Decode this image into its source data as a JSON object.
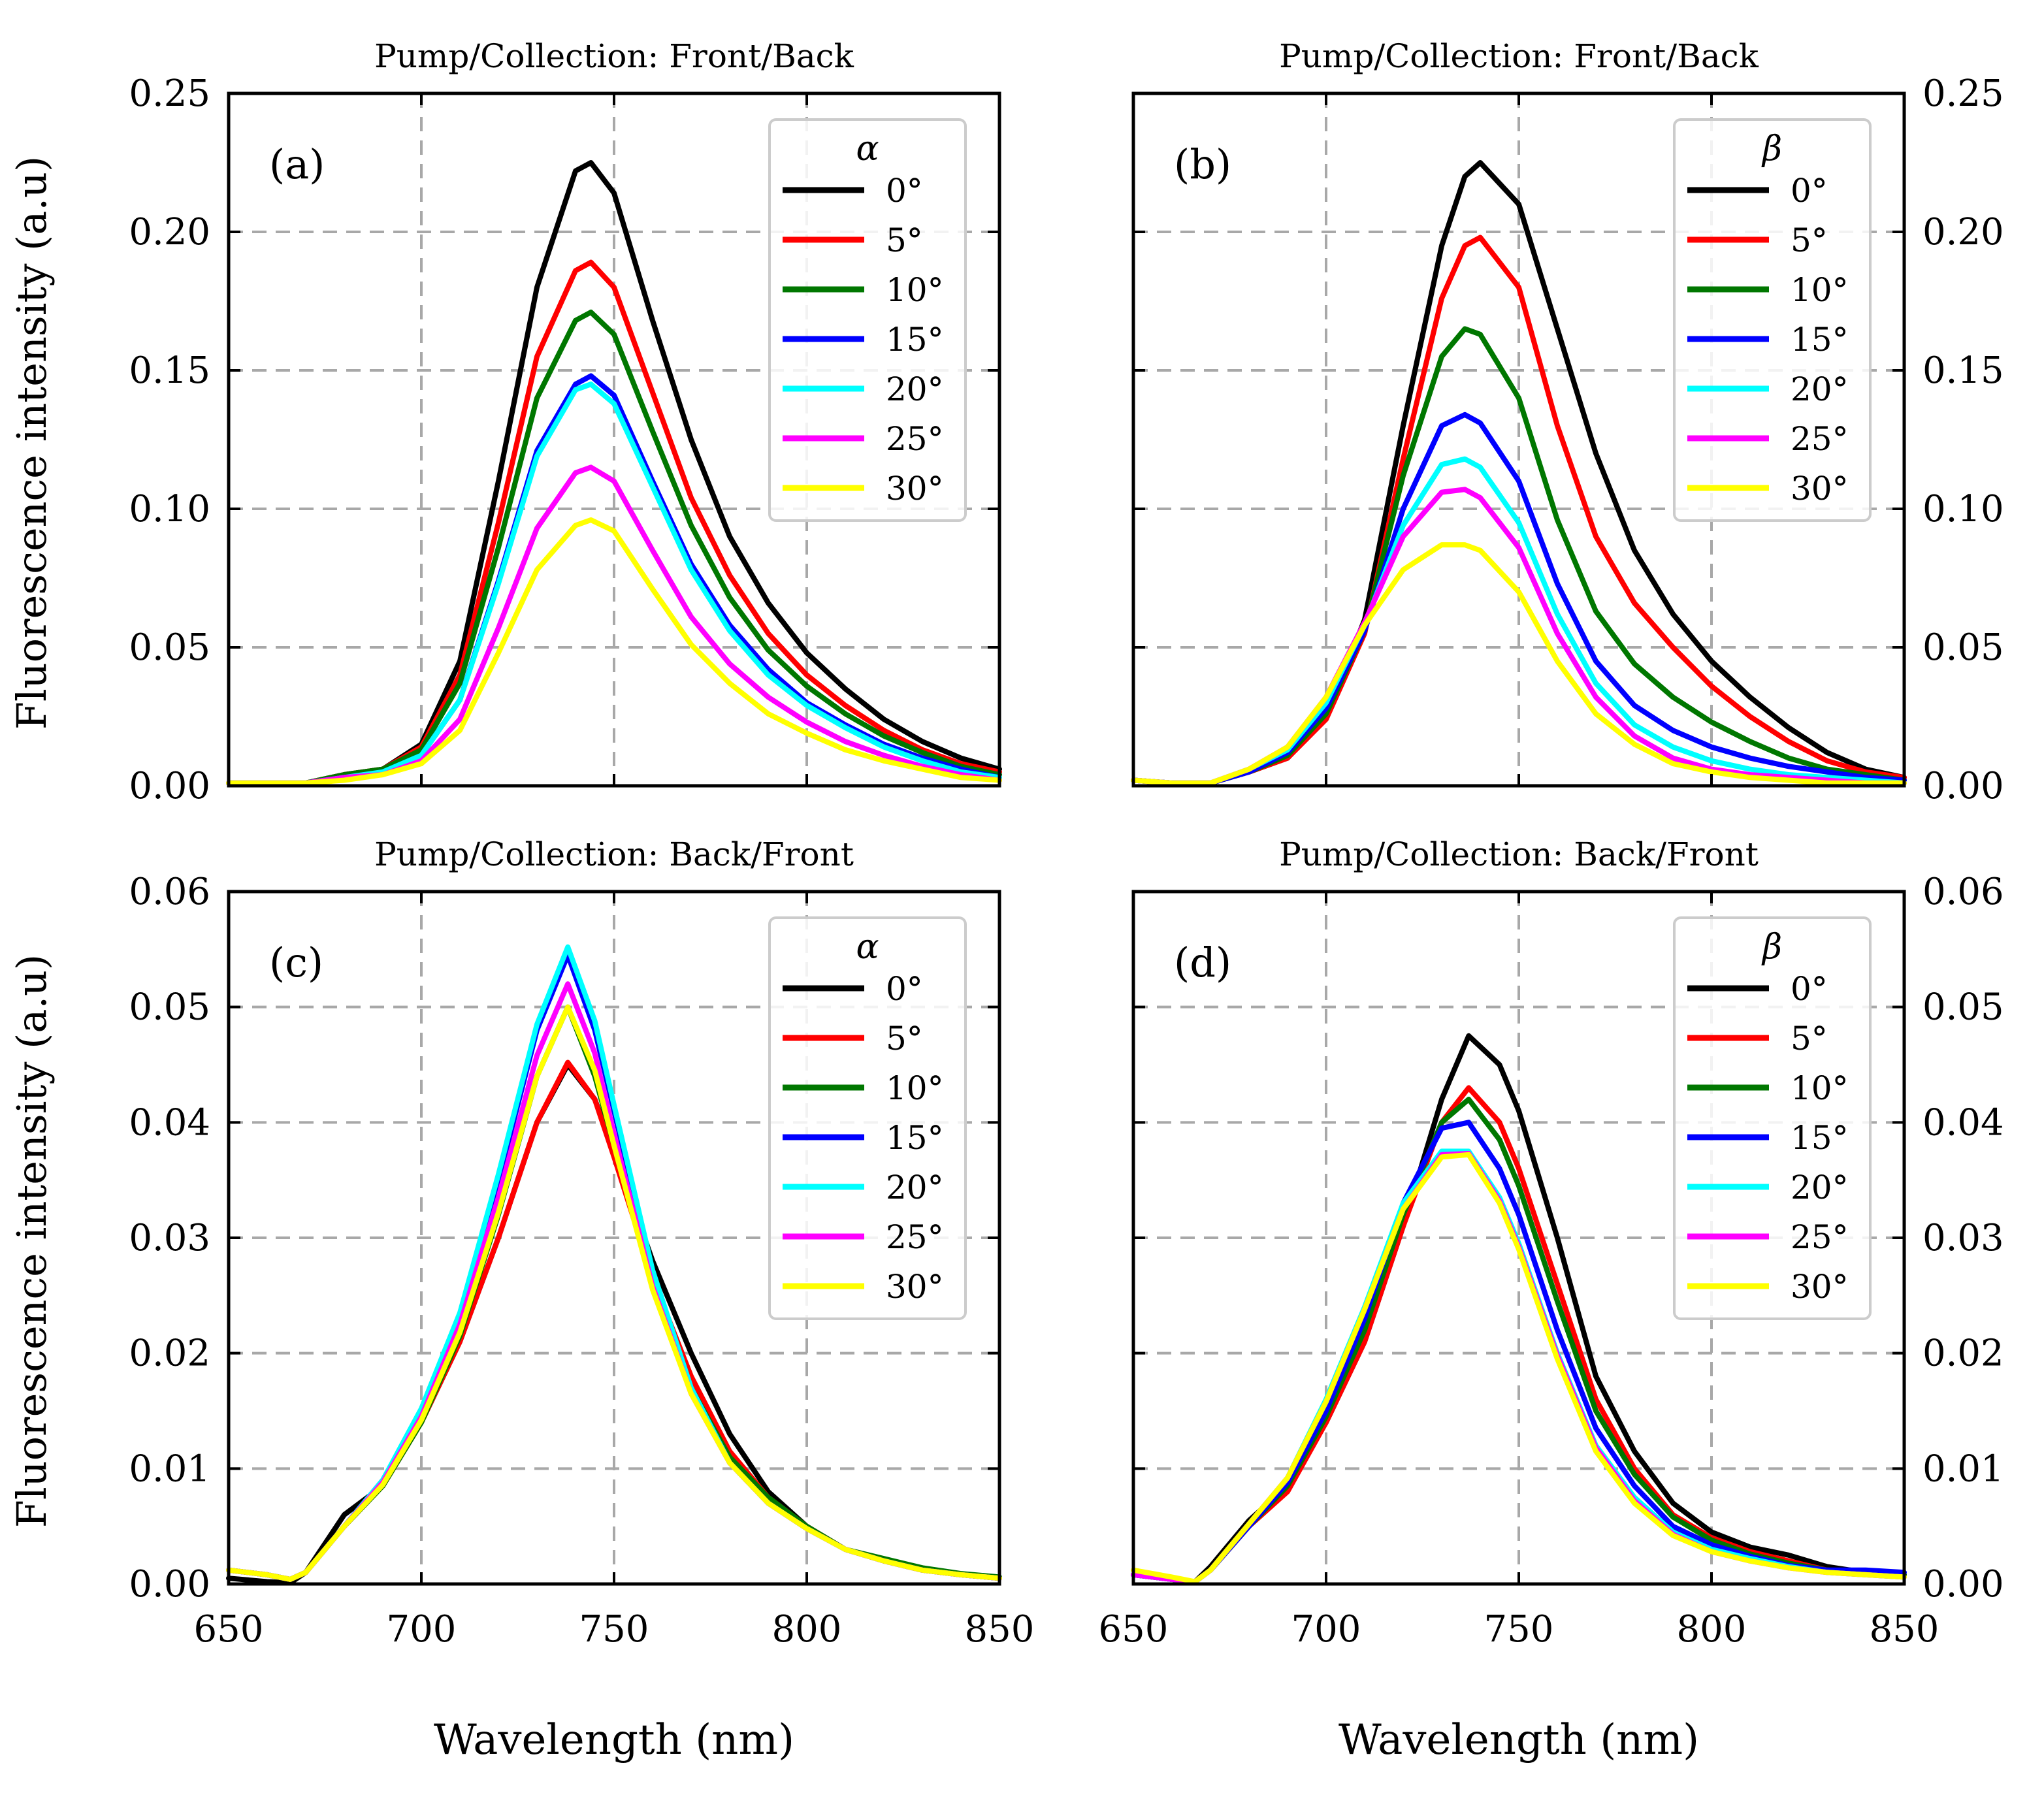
{
  "figure": {
    "xlabel": "Wavelength (nm)",
    "ylabel": "Fluorescence intensity (a.u)"
  },
  "chart_data": [
    {
      "type": "line",
      "panel_label": "(a)",
      "title": "Pump/Collection: Front/Back",
      "xlabel": "Wavelength (nm)",
      "ylabel": "Fluorescence intensity (a.u)",
      "xlim": [
        650,
        850
      ],
      "ylim": [
        0,
        0.25
      ],
      "xticks": [
        650,
        700,
        750,
        800,
        850
      ],
      "xtick_labels": [
        "650",
        "700",
        "750",
        "800",
        "850"
      ],
      "yticks": [
        0,
        0.05,
        0.1,
        0.15,
        0.2,
        0.25
      ],
      "ytick_labels": [
        "0.00",
        "0.05",
        "0.10",
        "0.15",
        "0.20",
        "0.25"
      ],
      "y_axis_side": "left",
      "grid": true,
      "legend_title": "α",
      "legend_position": "upper right",
      "x": [
        650,
        660,
        670,
        680,
        690,
        700,
        710,
        720,
        730,
        740,
        744,
        750,
        760,
        770,
        780,
        790,
        800,
        810,
        820,
        830,
        840,
        850
      ],
      "series": [
        {
          "name": "0°",
          "color": "#000000",
          "values": [
            0.001,
            0.001,
            0.001,
            0.004,
            0.006,
            0.015,
            0.045,
            0.11,
            0.18,
            0.222,
            0.225,
            0.214,
            0.168,
            0.125,
            0.09,
            0.066,
            0.048,
            0.035,
            0.024,
            0.016,
            0.01,
            0.006
          ]
        },
        {
          "name": "5°",
          "color": "#ff0000",
          "values": [
            0.001,
            0.001,
            0.001,
            0.004,
            0.006,
            0.014,
            0.04,
            0.095,
            0.155,
            0.186,
            0.189,
            0.18,
            0.142,
            0.104,
            0.076,
            0.055,
            0.04,
            0.029,
            0.02,
            0.013,
            0.008,
            0.005
          ]
        },
        {
          "name": "10°",
          "color": "#007700",
          "values": [
            0.001,
            0.001,
            0.001,
            0.004,
            0.006,
            0.013,
            0.037,
            0.086,
            0.14,
            0.168,
            0.171,
            0.163,
            0.128,
            0.094,
            0.068,
            0.049,
            0.036,
            0.026,
            0.018,
            0.012,
            0.007,
            0.004
          ]
        },
        {
          "name": "15°",
          "color": "#0000ff",
          "values": [
            0.001,
            0.001,
            0.001,
            0.003,
            0.005,
            0.011,
            0.031,
            0.074,
            0.121,
            0.145,
            0.148,
            0.141,
            0.11,
            0.08,
            0.058,
            0.042,
            0.03,
            0.022,
            0.015,
            0.01,
            0.006,
            0.003
          ]
        },
        {
          "name": "20°",
          "color": "#00ffff",
          "values": [
            0.001,
            0.001,
            0.001,
            0.003,
            0.005,
            0.011,
            0.031,
            0.073,
            0.119,
            0.143,
            0.145,
            0.138,
            0.108,
            0.078,
            0.056,
            0.04,
            0.029,
            0.021,
            0.014,
            0.009,
            0.005,
            0.003
          ]
        },
        {
          "name": "25°",
          "color": "#ff00ff",
          "values": [
            0.001,
            0.001,
            0.001,
            0.003,
            0.004,
            0.009,
            0.024,
            0.057,
            0.093,
            0.113,
            0.115,
            0.11,
            0.085,
            0.061,
            0.044,
            0.032,
            0.023,
            0.016,
            0.011,
            0.007,
            0.004,
            0.002
          ]
        },
        {
          "name": "30°",
          "color": "#ffff00",
          "values": [
            0.001,
            0.001,
            0.001,
            0.002,
            0.004,
            0.008,
            0.02,
            0.048,
            0.078,
            0.094,
            0.096,
            0.092,
            0.071,
            0.051,
            0.037,
            0.026,
            0.019,
            0.013,
            0.009,
            0.006,
            0.003,
            0.002
          ]
        }
      ]
    },
    {
      "type": "line",
      "panel_label": "(b)",
      "title": "Pump/Collection: Front/Back",
      "xlabel": "Wavelength (nm)",
      "ylabel": "",
      "xlim": [
        650,
        850
      ],
      "ylim": [
        0,
        0.25
      ],
      "xticks": [
        650,
        700,
        750,
        800,
        850
      ],
      "xtick_labels": [
        "650",
        "700",
        "750",
        "800",
        "850"
      ],
      "yticks": [
        0,
        0.05,
        0.1,
        0.15,
        0.2,
        0.25
      ],
      "ytick_labels": [
        "0.00",
        "0.05",
        "0.10",
        "0.15",
        "0.20",
        "0.25"
      ],
      "y_axis_side": "right",
      "grid": true,
      "legend_title": "β",
      "legend_position": "upper right",
      "x": [
        650,
        660,
        670,
        680,
        690,
        700,
        710,
        720,
        730,
        736,
        740,
        750,
        760,
        770,
        780,
        790,
        800,
        810,
        820,
        830,
        840,
        850
      ],
      "series": [
        {
          "name": "0°",
          "color": "#000000",
          "values": [
            0.002,
            0.001,
            0.001,
            0.005,
            0.01,
            0.025,
            0.06,
            0.13,
            0.195,
            0.22,
            0.225,
            0.21,
            0.165,
            0.12,
            0.085,
            0.062,
            0.045,
            0.032,
            0.021,
            0.012,
            0.006,
            0.003
          ]
        },
        {
          "name": "5°",
          "color": "#ff0000",
          "values": [
            0.002,
            0.001,
            0.001,
            0.005,
            0.01,
            0.024,
            0.055,
            0.118,
            0.176,
            0.195,
            0.198,
            0.18,
            0.13,
            0.09,
            0.066,
            0.05,
            0.036,
            0.025,
            0.016,
            0.009,
            0.005,
            0.003
          ]
        },
        {
          "name": "10°",
          "color": "#007700",
          "values": [
            0.002,
            0.001,
            0.001,
            0.005,
            0.011,
            0.026,
            0.056,
            0.112,
            0.155,
            0.165,
            0.163,
            0.14,
            0.096,
            0.063,
            0.044,
            0.032,
            0.023,
            0.016,
            0.01,
            0.006,
            0.004,
            0.002
          ]
        },
        {
          "name": "15°",
          "color": "#0000ff",
          "values": [
            0.002,
            0.001,
            0.001,
            0.005,
            0.012,
            0.028,
            0.056,
            0.1,
            0.13,
            0.134,
            0.131,
            0.11,
            0.073,
            0.045,
            0.029,
            0.02,
            0.014,
            0.01,
            0.007,
            0.005,
            0.003,
            0.002
          ]
        },
        {
          "name": "20°",
          "color": "#00ffff",
          "values": [
            0.002,
            0.001,
            0.001,
            0.006,
            0.013,
            0.03,
            0.058,
            0.094,
            0.116,
            0.118,
            0.115,
            0.095,
            0.062,
            0.037,
            0.022,
            0.014,
            0.009,
            0.006,
            0.004,
            0.003,
            0.002,
            0.001
          ]
        },
        {
          "name": "25°",
          "color": "#ff00ff",
          "values": [
            0.002,
            0.001,
            0.001,
            0.006,
            0.014,
            0.032,
            0.059,
            0.09,
            0.106,
            0.107,
            0.104,
            0.086,
            0.055,
            0.032,
            0.018,
            0.01,
            0.006,
            0.004,
            0.003,
            0.002,
            0.001,
            0.001
          ]
        },
        {
          "name": "30°",
          "color": "#ffff00",
          "values": [
            0.002,
            0.001,
            0.001,
            0.006,
            0.014,
            0.032,
            0.058,
            0.078,
            0.087,
            0.087,
            0.085,
            0.07,
            0.045,
            0.026,
            0.015,
            0.008,
            0.005,
            0.003,
            0.002,
            0.001,
            0.001,
            0.001
          ]
        }
      ]
    },
    {
      "type": "line",
      "panel_label": "(c)",
      "title": "Pump/Collection: Back/Front",
      "xlabel": "Wavelength (nm)",
      "ylabel": "Fluorescence intensity (a.u)",
      "xlim": [
        650,
        850
      ],
      "ylim": [
        0,
        0.06
      ],
      "xticks": [
        650,
        700,
        750,
        800,
        850
      ],
      "xtick_labels": [
        "650",
        "700",
        "750",
        "800",
        "850"
      ],
      "yticks": [
        0,
        0.01,
        0.02,
        0.03,
        0.04,
        0.05,
        0.06
      ],
      "ytick_labels": [
        "0.00",
        "0.01",
        "0.02",
        "0.03",
        "0.04",
        "0.05",
        "0.06"
      ],
      "y_axis_side": "left",
      "grid": true,
      "legend_title": "α",
      "legend_position": "upper right",
      "x": [
        650,
        660,
        666,
        670,
        680,
        690,
        700,
        710,
        720,
        730,
        738,
        745,
        750,
        760,
        770,
        780,
        790,
        800,
        810,
        820,
        830,
        840,
        850
      ],
      "series": [
        {
          "name": "0°",
          "color": "#000000",
          "values": [
            0.0005,
            0.0002,
            0.0001,
            0.001,
            0.006,
            0.0085,
            0.014,
            0.021,
            0.03,
            0.04,
            0.045,
            0.042,
            0.0375,
            0.028,
            0.02,
            0.013,
            0.008,
            0.005,
            0.003,
            0.002,
            0.0012,
            0.0008,
            0.0005
          ]
        },
        {
          "name": "5°",
          "color": "#ff0000",
          "values": [
            0.0012,
            0.0008,
            0.0004,
            0.001,
            0.005,
            0.0085,
            0.014,
            0.021,
            0.03,
            0.04,
            0.0452,
            0.042,
            0.037,
            0.0265,
            0.018,
            0.0115,
            0.0075,
            0.005,
            0.003,
            0.002,
            0.0012,
            0.0008,
            0.0005
          ]
        },
        {
          "name": "10°",
          "color": "#007700",
          "values": [
            0.0012,
            0.0008,
            0.0004,
            0.001,
            0.005,
            0.0085,
            0.014,
            0.0215,
            0.032,
            0.044,
            0.05,
            0.044,
            0.038,
            0.026,
            0.017,
            0.011,
            0.0075,
            0.005,
            0.003,
            0.0022,
            0.0014,
            0.0009,
            0.0006
          ]
        },
        {
          "name": "15°",
          "color": "#0000ff",
          "values": [
            0.0012,
            0.0008,
            0.0004,
            0.001,
            0.005,
            0.009,
            0.015,
            0.023,
            0.035,
            0.048,
            0.0545,
            0.048,
            0.041,
            0.027,
            0.017,
            0.0105,
            0.007,
            0.0048,
            0.003,
            0.002,
            0.0012,
            0.0008,
            0.0005
          ]
        },
        {
          "name": "20°",
          "color": "#00ffff",
          "values": [
            0.0012,
            0.0008,
            0.0004,
            0.001,
            0.005,
            0.009,
            0.0152,
            0.0235,
            0.0355,
            0.0485,
            0.0552,
            0.0488,
            0.0415,
            0.0272,
            0.017,
            0.0105,
            0.007,
            0.0048,
            0.003,
            0.002,
            0.0012,
            0.0008,
            0.0005
          ]
        },
        {
          "name": "25°",
          "color": "#ff00ff",
          "values": [
            0.0012,
            0.0008,
            0.0004,
            0.001,
            0.005,
            0.0088,
            0.0145,
            0.0225,
            0.0335,
            0.0458,
            0.052,
            0.046,
            0.039,
            0.0258,
            0.0165,
            0.0105,
            0.007,
            0.0048,
            0.003,
            0.002,
            0.0012,
            0.0008,
            0.0005
          ]
        },
        {
          "name": "30°",
          "color": "#ffff00",
          "values": [
            0.0012,
            0.0008,
            0.0004,
            0.001,
            0.005,
            0.0086,
            0.0142,
            0.0218,
            0.0322,
            0.044,
            0.05,
            0.0445,
            0.038,
            0.0255,
            0.0165,
            0.0105,
            0.007,
            0.0048,
            0.003,
            0.002,
            0.0012,
            0.0008,
            0.0005
          ]
        }
      ]
    },
    {
      "type": "line",
      "panel_label": "(d)",
      "title": "Pump/Collection: Back/Front",
      "xlabel": "Wavelength (nm)",
      "ylabel": "",
      "xlim": [
        650,
        850
      ],
      "ylim": [
        0,
        0.06
      ],
      "xticks": [
        650,
        700,
        750,
        800,
        850
      ],
      "xtick_labels": [
        "650",
        "700",
        "750",
        "800",
        "850"
      ],
      "yticks": [
        0,
        0.01,
        0.02,
        0.03,
        0.04,
        0.05,
        0.06
      ],
      "ytick_labels": [
        "0.00",
        "0.01",
        "0.02",
        "0.03",
        "0.04",
        "0.05",
        "0.06"
      ],
      "y_axis_side": "right",
      "grid": true,
      "legend_title": "β",
      "legend_position": "upper right",
      "x": [
        650,
        660,
        666,
        670,
        680,
        690,
        700,
        710,
        720,
        730,
        737,
        745,
        750,
        760,
        770,
        780,
        790,
        800,
        810,
        820,
        830,
        840,
        850
      ],
      "series": [
        {
          "name": "0°",
          "color": "#000000",
          "values": [
            0.0008,
            0.0004,
            0.0002,
            0.0015,
            0.0055,
            0.0085,
            0.014,
            0.021,
            0.031,
            0.042,
            0.0475,
            0.045,
            0.041,
            0.03,
            0.018,
            0.0115,
            0.007,
            0.0045,
            0.0032,
            0.0025,
            0.0015,
            0.001,
            0.0008
          ]
        },
        {
          "name": "5°",
          "color": "#ff0000",
          "values": [
            0.0008,
            0.0004,
            0.0002,
            0.0012,
            0.005,
            0.008,
            0.014,
            0.021,
            0.031,
            0.04,
            0.043,
            0.04,
            0.036,
            0.026,
            0.016,
            0.01,
            0.006,
            0.004,
            0.0028,
            0.002,
            0.0012,
            0.001,
            0.0008
          ]
        },
        {
          "name": "10°",
          "color": "#007700",
          "values": [
            0.0008,
            0.0004,
            0.0002,
            0.0012,
            0.005,
            0.0085,
            0.0145,
            0.022,
            0.032,
            0.04,
            0.042,
            0.0385,
            0.0345,
            0.0245,
            0.015,
            0.0095,
            0.0058,
            0.0038,
            0.0026,
            0.0018,
            0.0012,
            0.001,
            0.0008
          ]
        },
        {
          "name": "15°",
          "color": "#0000ff",
          "values": [
            0.0008,
            0.0004,
            0.0002,
            0.0012,
            0.005,
            0.0088,
            0.015,
            0.023,
            0.033,
            0.0395,
            0.04,
            0.036,
            0.032,
            0.022,
            0.0135,
            0.0085,
            0.005,
            0.0034,
            0.0024,
            0.0016,
            0.0012,
            0.0012,
            0.001
          ]
        },
        {
          "name": "20°",
          "color": "#00ffff",
          "values": [
            0.0008,
            0.0004,
            0.0002,
            0.0012,
            0.0052,
            0.0092,
            0.016,
            0.024,
            0.033,
            0.0375,
            0.0375,
            0.0335,
            0.0295,
            0.02,
            0.012,
            0.0075,
            0.0045,
            0.003,
            0.0022,
            0.0015,
            0.001,
            0.0008,
            0.0006
          ]
        },
        {
          "name": "25°",
          "color": "#ff00ff",
          "values": [
            0.0008,
            0.0004,
            0.0002,
            0.0012,
            0.0052,
            0.0092,
            0.0158,
            0.0238,
            0.0325,
            0.0372,
            0.0373,
            0.0332,
            0.0292,
            0.0198,
            0.0118,
            0.0072,
            0.0043,
            0.0028,
            0.002,
            0.0014,
            0.001,
            0.0008,
            0.0006
          ]
        },
        {
          "name": "30°",
          "color": "#ffff00",
          "values": [
            0.0012,
            0.0006,
            0.0002,
            0.0012,
            0.0052,
            0.0092,
            0.0158,
            0.0238,
            0.0325,
            0.037,
            0.0372,
            0.033,
            0.029,
            0.0195,
            0.0115,
            0.007,
            0.0042,
            0.0028,
            0.002,
            0.0014,
            0.001,
            0.0008,
            0.0006
          ]
        }
      ]
    }
  ]
}
